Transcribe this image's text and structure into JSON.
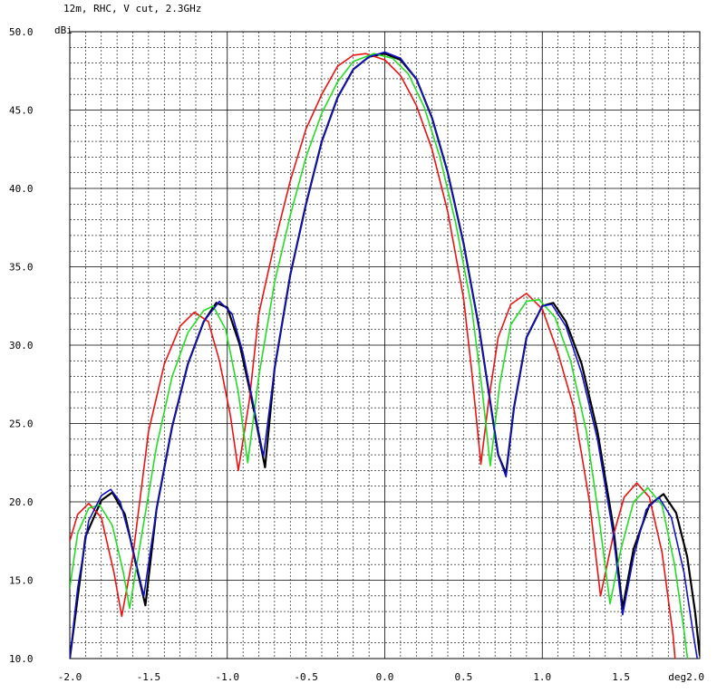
{
  "chart_data": {
    "type": "line",
    "title": "12m, RHC, V cut, 2.3GHz",
    "ylabel": "dBi",
    "xlabel": "deg",
    "xlim": [
      -2.0,
      2.0
    ],
    "ylim": [
      10.0,
      50.0
    ],
    "grid": true,
    "x_ticks": [
      "-2.0",
      "-1.5",
      "-1.0",
      "-0.5",
      "0.0",
      "0.5",
      "1.0",
      "1.5",
      "deg2.0"
    ],
    "y_ticks": [
      "10.0",
      "15.0",
      "20.0",
      "25.0",
      "30.0",
      "35.0",
      "40.0",
      "45.0",
      "50.0"
    ],
    "series": [
      {
        "color": "#000000",
        "points": [
          [
            -2.0,
            10.0
          ],
          [
            -1.9,
            17.8
          ],
          [
            -1.8,
            20.1
          ],
          [
            -1.73,
            20.6
          ],
          [
            -1.65,
            19.2
          ],
          [
            -1.58,
            16.0
          ],
          [
            -1.52,
            13.4
          ],
          [
            -1.45,
            19.5
          ],
          [
            -1.35,
            24.8
          ],
          [
            -1.25,
            28.8
          ],
          [
            -1.15,
            31.5
          ],
          [
            -1.07,
            32.7
          ],
          [
            -1.0,
            32.4
          ],
          [
            -0.92,
            30.0
          ],
          [
            -0.85,
            26.8
          ],
          [
            -0.76,
            22.2
          ],
          [
            -0.7,
            28.5
          ],
          [
            -0.6,
            34.5
          ],
          [
            -0.5,
            39.0
          ],
          [
            -0.4,
            43.0
          ],
          [
            -0.3,
            45.8
          ],
          [
            -0.2,
            47.6
          ],
          [
            -0.1,
            48.4
          ],
          [
            0.0,
            48.6
          ],
          [
            0.1,
            48.2
          ],
          [
            0.2,
            47.0
          ],
          [
            0.3,
            44.5
          ],
          [
            0.4,
            41.0
          ],
          [
            0.5,
            36.5
          ],
          [
            0.6,
            31.0
          ],
          [
            0.66,
            27.0
          ],
          [
            0.72,
            23.0
          ],
          [
            0.77,
            21.8
          ],
          [
            0.82,
            26.0
          ],
          [
            0.9,
            30.5
          ],
          [
            1.0,
            32.5
          ],
          [
            1.07,
            32.7
          ],
          [
            1.15,
            31.5
          ],
          [
            1.25,
            28.8
          ],
          [
            1.35,
            24.5
          ],
          [
            1.45,
            18.5
          ],
          [
            1.51,
            13.2
          ],
          [
            1.58,
            17.0
          ],
          [
            1.68,
            19.8
          ],
          [
            1.77,
            20.5
          ],
          [
            1.85,
            19.3
          ],
          [
            1.92,
            16.5
          ],
          [
            1.97,
            13.0
          ],
          [
            2.0,
            10.2
          ]
        ]
      },
      {
        "color": "#ee1111",
        "points": [
          [
            -2.0,
            17.5
          ],
          [
            -1.95,
            19.2
          ],
          [
            -1.88,
            19.9
          ],
          [
            -1.8,
            19.0
          ],
          [
            -1.72,
            15.5
          ],
          [
            -1.67,
            12.7
          ],
          [
            -1.6,
            16.5
          ],
          [
            -1.5,
            24.5
          ],
          [
            -1.4,
            28.8
          ],
          [
            -1.3,
            31.2
          ],
          [
            -1.21,
            32.1
          ],
          [
            -1.12,
            31.5
          ],
          [
            -1.05,
            29.0
          ],
          [
            -0.98,
            25.5
          ],
          [
            -0.93,
            22.0
          ],
          [
            -0.86,
            26.5
          ],
          [
            -0.8,
            32.0
          ],
          [
            -0.7,
            36.5
          ],
          [
            -0.6,
            40.5
          ],
          [
            -0.5,
            43.8
          ],
          [
            -0.4,
            46.0
          ],
          [
            -0.3,
            47.8
          ],
          [
            -0.2,
            48.5
          ],
          [
            -0.12,
            48.6
          ],
          [
            0.0,
            48.2
          ],
          [
            0.1,
            47.2
          ],
          [
            0.2,
            45.3
          ],
          [
            0.3,
            42.5
          ],
          [
            0.4,
            38.5
          ],
          [
            0.5,
            33.0
          ],
          [
            0.55,
            28.5
          ],
          [
            0.61,
            22.4
          ],
          [
            0.66,
            26.5
          ],
          [
            0.72,
            30.5
          ],
          [
            0.8,
            32.6
          ],
          [
            0.9,
            33.3
          ],
          [
            1.0,
            32.3
          ],
          [
            1.1,
            29.5
          ],
          [
            1.2,
            26.0
          ],
          [
            1.3,
            20.0
          ],
          [
            1.37,
            14.0
          ],
          [
            1.45,
            17.8
          ],
          [
            1.52,
            20.3
          ],
          [
            1.6,
            21.2
          ],
          [
            1.68,
            20.3
          ],
          [
            1.76,
            16.8
          ],
          [
            1.83,
            11.5
          ],
          [
            1.86,
            8.0
          ]
        ]
      },
      {
        "color": "#22dd22",
        "points": [
          [
            -2.0,
            14.5
          ],
          [
            -1.95,
            18.0
          ],
          [
            -1.88,
            19.6
          ],
          [
            -1.81,
            19.8
          ],
          [
            -1.73,
            18.5
          ],
          [
            -1.66,
            15.5
          ],
          [
            -1.62,
            13.2
          ],
          [
            -1.55,
            17.5
          ],
          [
            -1.45,
            23.5
          ],
          [
            -1.35,
            28.0
          ],
          [
            -1.25,
            30.8
          ],
          [
            -1.15,
            32.2
          ],
          [
            -1.09,
            32.5
          ],
          [
            -1.01,
            31.0
          ],
          [
            -0.93,
            27.0
          ],
          [
            -0.87,
            22.5
          ],
          [
            -0.8,
            28.0
          ],
          [
            -0.7,
            34.0
          ],
          [
            -0.6,
            38.3
          ],
          [
            -0.5,
            42.0
          ],
          [
            -0.4,
            44.8
          ],
          [
            -0.3,
            46.8
          ],
          [
            -0.2,
            48.1
          ],
          [
            -0.07,
            48.6
          ],
          [
            0.05,
            48.3
          ],
          [
            0.15,
            47.3
          ],
          [
            0.25,
            45.2
          ],
          [
            0.35,
            42.0
          ],
          [
            0.45,
            37.8
          ],
          [
            0.55,
            32.5
          ],
          [
            0.62,
            27.0
          ],
          [
            0.67,
            22.3
          ],
          [
            0.73,
            27.5
          ],
          [
            0.8,
            31.3
          ],
          [
            0.9,
            32.8
          ],
          [
            0.98,
            32.9
          ],
          [
            1.08,
            31.8
          ],
          [
            1.18,
            29.0
          ],
          [
            1.28,
            24.5
          ],
          [
            1.36,
            19.0
          ],
          [
            1.43,
            13.5
          ],
          [
            1.5,
            17.0
          ],
          [
            1.58,
            20.0
          ],
          [
            1.67,
            20.9
          ],
          [
            1.76,
            19.8
          ],
          [
            1.84,
            16.0
          ],
          [
            1.9,
            11.8
          ],
          [
            1.94,
            8.5
          ]
        ]
      },
      {
        "color": "#1111cc",
        "points": [
          [
            -2.0,
            10.0
          ],
          [
            -1.95,
            14.5
          ],
          [
            -1.88,
            18.8
          ],
          [
            -1.8,
            20.4
          ],
          [
            -1.74,
            20.8
          ],
          [
            -1.68,
            20.0
          ],
          [
            -1.6,
            17.0
          ],
          [
            -1.53,
            14.0
          ],
          [
            -1.45,
            19.5
          ],
          [
            -1.35,
            24.8
          ],
          [
            -1.25,
            28.8
          ],
          [
            -1.15,
            31.5
          ],
          [
            -1.05,
            32.8
          ],
          [
            -0.97,
            32.0
          ],
          [
            -0.9,
            29.5
          ],
          [
            -0.84,
            26.5
          ],
          [
            -0.77,
            22.9
          ],
          [
            -0.7,
            28.5
          ],
          [
            -0.6,
            34.5
          ],
          [
            -0.5,
            39.0
          ],
          [
            -0.4,
            43.0
          ],
          [
            -0.3,
            45.8
          ],
          [
            -0.2,
            47.6
          ],
          [
            -0.1,
            48.4
          ],
          [
            0.0,
            48.7
          ],
          [
            0.1,
            48.3
          ],
          [
            0.2,
            47.0
          ],
          [
            0.3,
            44.5
          ],
          [
            0.4,
            41.0
          ],
          [
            0.5,
            36.5
          ],
          [
            0.6,
            31.0
          ],
          [
            0.66,
            27.0
          ],
          [
            0.72,
            23.0
          ],
          [
            0.77,
            21.6
          ],
          [
            0.82,
            26.0
          ],
          [
            0.9,
            30.5
          ],
          [
            1.0,
            32.5
          ],
          [
            1.06,
            32.6
          ],
          [
            1.15,
            31.2
          ],
          [
            1.25,
            28.2
          ],
          [
            1.35,
            24.0
          ],
          [
            1.45,
            18.0
          ],
          [
            1.51,
            12.8
          ],
          [
            1.58,
            16.5
          ],
          [
            1.66,
            19.5
          ],
          [
            1.74,
            20.3
          ],
          [
            1.82,
            19.0
          ],
          [
            1.9,
            15.5
          ],
          [
            1.96,
            11.5
          ],
          [
            2.0,
            9.0
          ]
        ]
      }
    ]
  }
}
